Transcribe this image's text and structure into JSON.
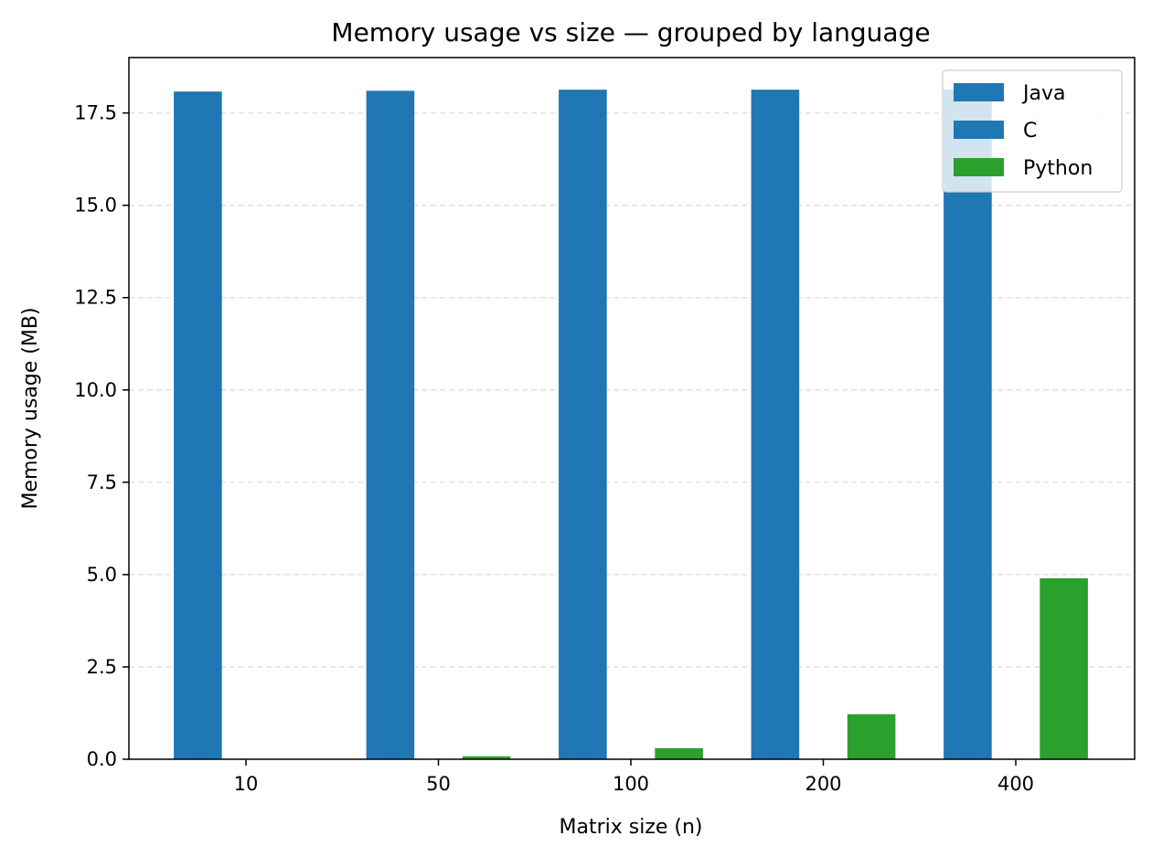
{
  "chart_data": {
    "type": "bar",
    "title": "Memory usage vs size — grouped by language",
    "xlabel": "Matrix size (n)",
    "ylabel": "Memory usage (MB)",
    "categories": [
      "10",
      "50",
      "100",
      "200",
      "400"
    ],
    "series": [
      {
        "name": "Java",
        "color": "#1f77b4",
        "values": [
          18.08,
          18.1,
          18.13,
          18.13,
          18.14
        ]
      },
      {
        "name": "C",
        "color": "#1f77b4",
        "values": [
          0.0,
          0.0,
          0.0,
          0.0,
          0.0
        ]
      },
      {
        "name": "Python",
        "color": "#2ca02c",
        "values": [
          0.005,
          0.08,
          0.3,
          1.22,
          4.9
        ]
      }
    ],
    "ylim": [
      0,
      19
    ],
    "yticks": [
      "0.0",
      "2.5",
      "5.0",
      "7.5",
      "10.0",
      "12.5",
      "15.0",
      "17.5"
    ],
    "ytick_values": [
      0,
      2.5,
      5,
      7.5,
      10,
      12.5,
      15,
      17.5
    ],
    "grid": "y-dashed",
    "legend_position": "top-right"
  }
}
